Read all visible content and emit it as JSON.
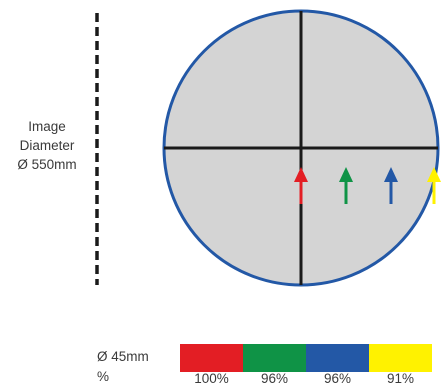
{
  "image_label": {
    "line1": "Image",
    "line2": "Diameter",
    "line3": "Ø 550mm"
  },
  "legend": {
    "label_line1": "Ø 45mm",
    "label_line2": "%",
    "items": [
      {
        "value": "100%",
        "color": "#e31e24"
      },
      {
        "value": "96%",
        "color": "#0f9346"
      },
      {
        "value": "96%",
        "color": "#2358a6"
      },
      {
        "value": "91%",
        "color": "#fff200"
      }
    ]
  },
  "circle": {
    "fill": "#d4d4d4",
    "stroke": "#2358a6",
    "crosshair": "#1a1a1a"
  },
  "arrows": [
    {
      "color": "#e31e24"
    },
    {
      "color": "#0f9346"
    },
    {
      "color": "#2358a6"
    },
    {
      "color": "#fff200"
    }
  ],
  "diameter_line_color": "#1a1a1a"
}
